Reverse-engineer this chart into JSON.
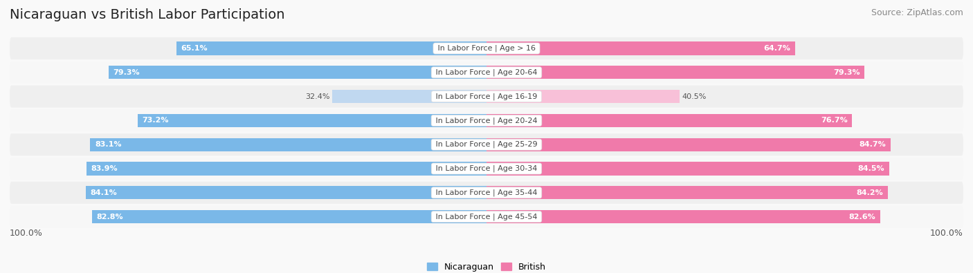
{
  "title": "Nicaraguan vs British Labor Participation",
  "source": "Source: ZipAtlas.com",
  "categories": [
    "In Labor Force | Age > 16",
    "In Labor Force | Age 20-64",
    "In Labor Force | Age 16-19",
    "In Labor Force | Age 20-24",
    "In Labor Force | Age 25-29",
    "In Labor Force | Age 30-34",
    "In Labor Force | Age 35-44",
    "In Labor Force | Age 45-54"
  ],
  "nicaraguan_values": [
    65.1,
    79.3,
    32.4,
    73.2,
    83.1,
    83.9,
    84.1,
    82.8
  ],
  "british_values": [
    64.7,
    79.3,
    40.5,
    76.7,
    84.7,
    84.5,
    84.2,
    82.6
  ],
  "nicaraguan_color": "#7ab8e8",
  "british_color": "#f07aaa",
  "nicaraguan_color_light": "#c0d8f0",
  "british_color_light": "#f8c0d8",
  "max_value": 100.0,
  "bg_color": "#f9f9f9",
  "row_bg_even": "#efefef",
  "row_bg_odd": "#f7f7f7",
  "title_fontsize": 14,
  "source_fontsize": 9,
  "label_fontsize": 8,
  "value_fontsize": 8,
  "legend_fontsize": 9,
  "bar_height": 0.55
}
